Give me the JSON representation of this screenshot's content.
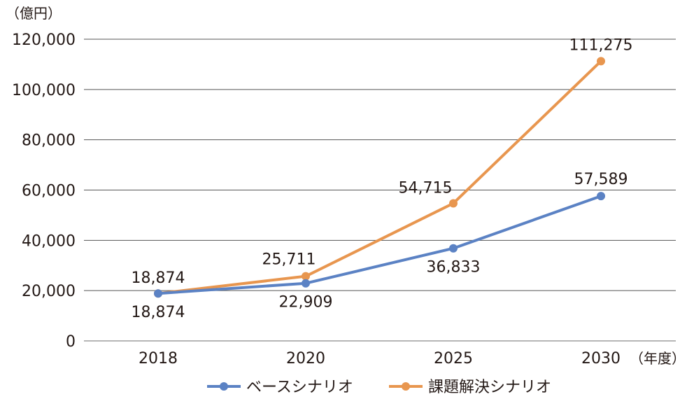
{
  "chart_data": {
    "type": "line",
    "categories": [
      "2018",
      "2020",
      "2025",
      "2030"
    ],
    "series": [
      {
        "name": "ベースシナリオ",
        "color": "#5B82C4",
        "values": [
          18874,
          22909,
          36833,
          57589
        ],
        "labels": [
          "18,874",
          "22,909",
          "36,833",
          "57,589"
        ]
      },
      {
        "name": "課題解決シナリオ",
        "color": "#E8964F",
        "values": [
          18874,
          25711,
          54715,
          111275
        ],
        "labels": [
          "18,874",
          "25,711",
          "54,715",
          "111,275"
        ]
      }
    ],
    "ylabel": "（億円）",
    "xunit": "（年度）",
    "ylim": [
      0,
      120000
    ],
    "yticks": [
      0,
      20000,
      40000,
      60000,
      80000,
      100000,
      120000
    ],
    "ytick_labels": [
      "0",
      "20,000",
      "40,000",
      "60,000",
      "80,000",
      "100,000",
      "120,000"
    ],
    "grid": true,
    "legend": "bottom"
  }
}
